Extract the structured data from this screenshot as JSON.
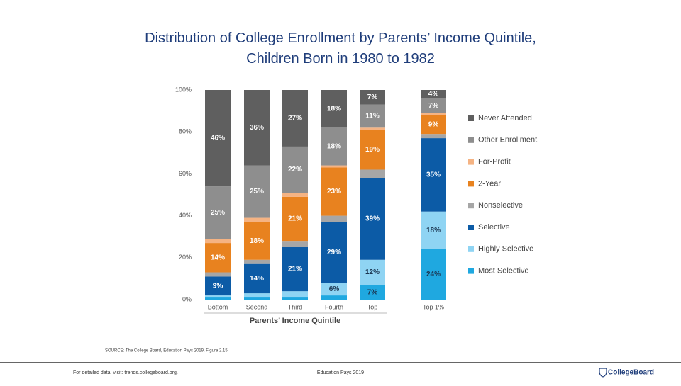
{
  "chart_data": {
    "type": "stacked-bar",
    "title": "Distribution of College Enrollment by Parents’ Income Quintile, Children Born in 1980 to 1982",
    "x_label": "Parents’ Income Quintile",
    "categories": [
      "Bottom",
      "Second",
      "Third",
      "Fourth",
      "Top",
      "Top 1%"
    ],
    "ylim": [
      0,
      100
    ],
    "yticks": [
      {
        "value": 0,
        "label": "0%"
      },
      {
        "value": 20,
        "label": "20%"
      },
      {
        "value": 40,
        "label": "40%"
      },
      {
        "value": 60,
        "label": "60%"
      },
      {
        "value": 80,
        "label": "80%"
      },
      {
        "value": 100,
        "label": "100%"
      }
    ],
    "legend": "right",
    "series": [
      {
        "name": "Most Selective",
        "color": "#1fa8e0",
        "values": [
          1,
          1,
          1,
          2,
          7,
          24
        ],
        "value_labels": [
          null,
          null,
          null,
          null,
          "7%",
          "24%"
        ]
      },
      {
        "name": "Highly Selective",
        "color": "#8fd4f3",
        "values": [
          1,
          2,
          3,
          6,
          12,
          18
        ],
        "value_labels": [
          null,
          null,
          null,
          "6%",
          "12%",
          "18%"
        ]
      },
      {
        "name": "Selective",
        "color": "#0c5ba6",
        "values": [
          9,
          14,
          21,
          29,
          39,
          35
        ],
        "value_labels": [
          "9%",
          "14%",
          "21%",
          "29%",
          "39%",
          "35%"
        ]
      },
      {
        "name": "Nonselective",
        "color": "#a6a6a6",
        "values": [
          2,
          2,
          3,
          3,
          4,
          2
        ],
        "value_labels": [
          null,
          null,
          null,
          null,
          null,
          null
        ]
      },
      {
        "name": "2-Year",
        "color": "#e8821f",
        "values": [
          14,
          18,
          21,
          23,
          19,
          9
        ],
        "value_labels": [
          "14%",
          "18%",
          "21%",
          "23%",
          "19%",
          "9%"
        ]
      },
      {
        "name": "For-Profit",
        "color": "#f5b383",
        "values": [
          2,
          2,
          2,
          1,
          1,
          1
        ],
        "value_labels": [
          null,
          null,
          null,
          null,
          null,
          null
        ]
      },
      {
        "name": "Other Enrollment",
        "color": "#8e8e8e",
        "values": [
          25,
          25,
          22,
          18,
          11,
          7
        ],
        "value_labels": [
          "25%",
          "25%",
          "22%",
          "18%",
          "11%",
          "7%"
        ]
      },
      {
        "name": "Never Attended",
        "color": "#5f5f5f",
        "values": [
          46,
          36,
          27,
          18,
          7,
          4
        ],
        "value_labels": [
          "46%",
          "36%",
          "27%",
          "18%",
          "7%",
          "4%"
        ]
      }
    ]
  },
  "source": "SOURCE: The College Board, Education Pays 2019, Figure 2.15",
  "footer": {
    "left": "For detailed data, visit: trends.collegeboard.org.",
    "center": "Education Pays 2019",
    "logo": "CollegeBoard"
  }
}
